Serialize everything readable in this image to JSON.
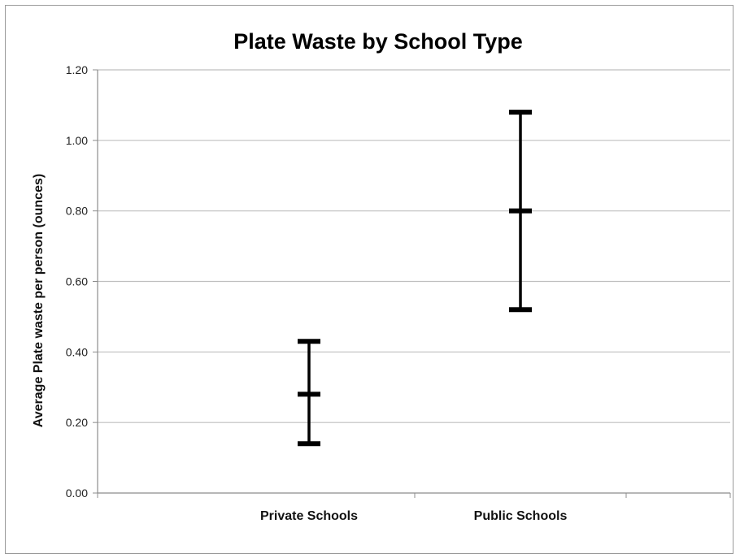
{
  "chart_data": {
    "type": "error-bar",
    "title": "Plate Waste by School Type",
    "xlabel": "",
    "ylabel": "Average Plate waste per person (ounces)",
    "ylim": [
      0,
      1.2
    ],
    "yticks": [
      "0.00",
      "0.20",
      "0.40",
      "0.60",
      "0.80",
      "1.00",
      "1.20"
    ],
    "ytick_values": [
      0,
      0.2,
      0.4,
      0.6,
      0.8,
      1.0,
      1.2
    ],
    "categories": [
      "Private Schools",
      "Public Schools"
    ],
    "series": [
      {
        "mean": [
          0.28,
          0.8
        ],
        "upper": [
          0.43,
          1.08
        ],
        "lower": [
          0.14,
          0.52
        ]
      }
    ],
    "grid": true,
    "legend": "none",
    "colors": {
      "marks": "#000000",
      "grid": "#bfbfbf",
      "axis": "#8c8c8c"
    }
  }
}
